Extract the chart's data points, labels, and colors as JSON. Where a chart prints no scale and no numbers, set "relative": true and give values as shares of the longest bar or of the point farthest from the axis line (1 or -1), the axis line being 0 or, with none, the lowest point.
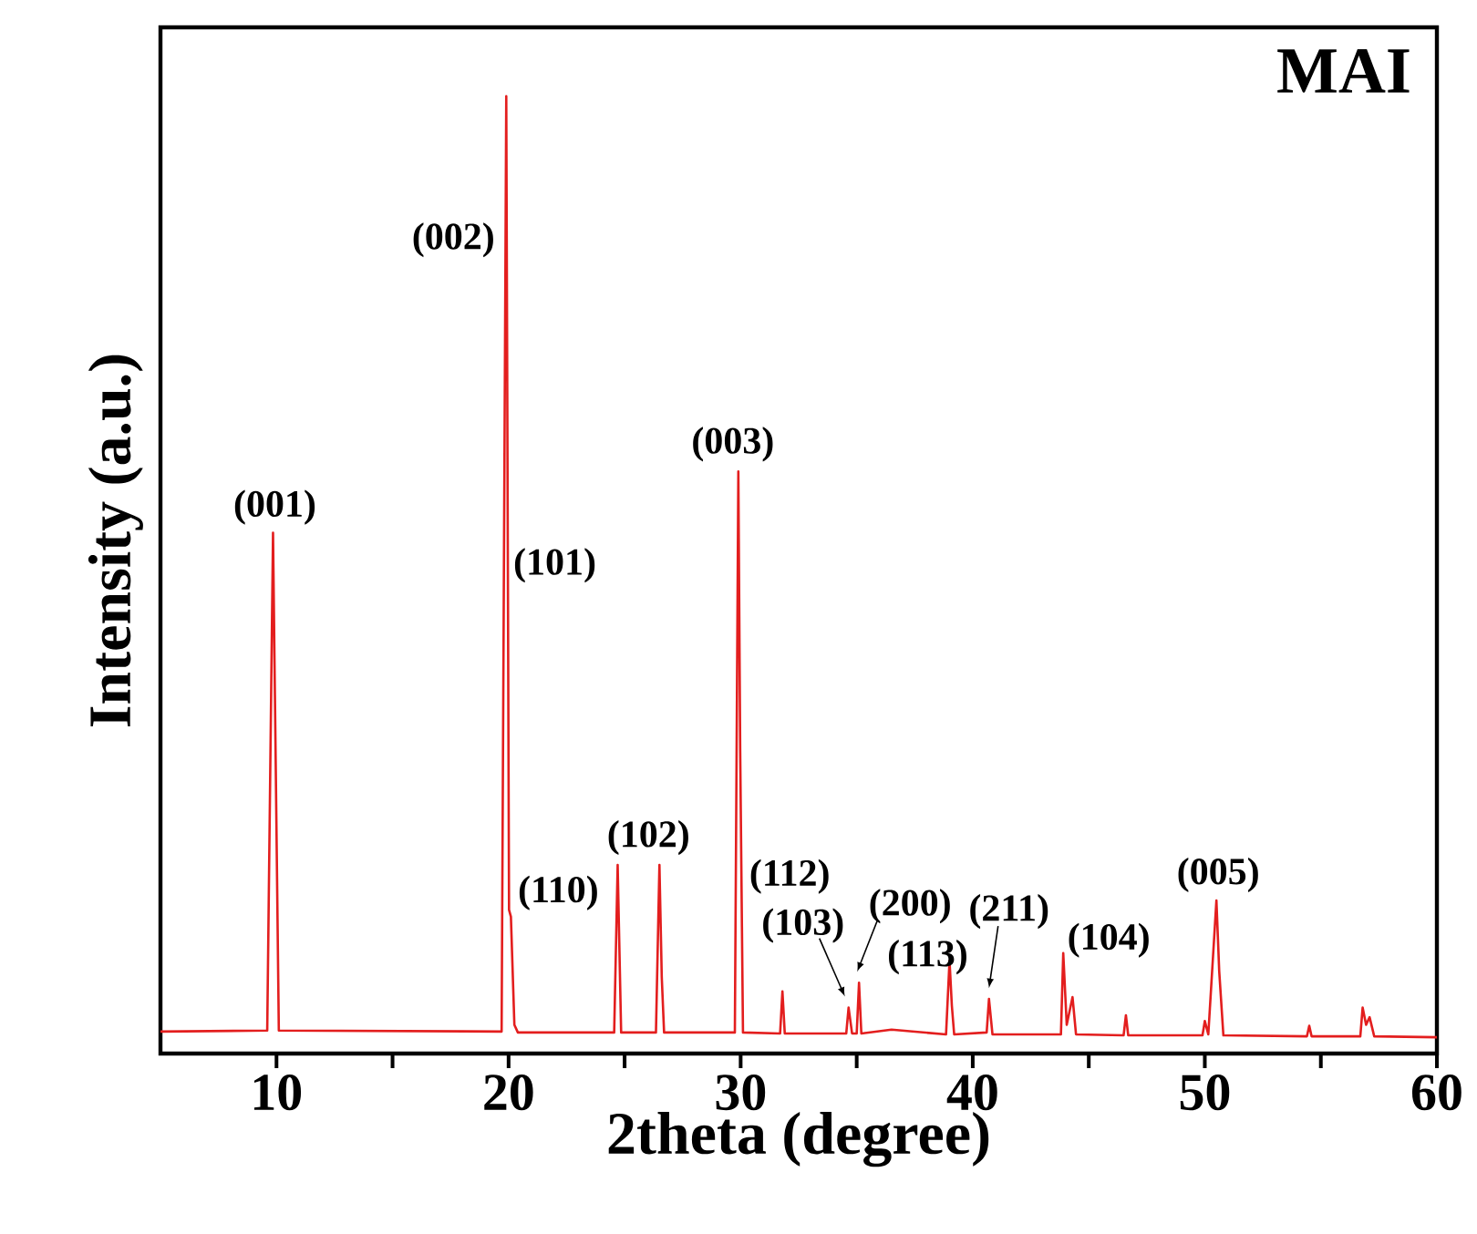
{
  "chart_data": {
    "type": "line",
    "title": "MAI",
    "xlabel": "2theta (degree)",
    "ylabel": "Intensity (a.u.)",
    "relative": true,
    "color": "#e31e1e",
    "xlim": [
      5,
      60
    ],
    "xticks": [
      10,
      {
        "value": 15,
        "label": null
      },
      20,
      {
        "value": 25,
        "label": null
      },
      30,
      {
        "value": 35,
        "label": null
      },
      40,
      {
        "value": 45,
        "label": null
      },
      50,
      {
        "value": 55,
        "label": null
      },
      60
    ],
    "x": [
      5,
      9.6,
      9.85,
      10.1,
      19.7,
      19.9,
      20.02,
      20.1,
      20.25,
      20.4,
      24.55,
      24.7,
      24.85,
      26.35,
      26.5,
      26.6,
      26.7,
      29.75,
      29.9,
      29.98,
      30.1,
      31.7,
      31.8,
      31.9,
      34.55,
      34.65,
      34.8,
      35.0,
      35.1,
      35.2,
      36.5,
      38.85,
      39.0,
      39.1,
      39.2,
      40.6,
      40.7,
      40.85,
      43.8,
      43.9,
      44.05,
      44.3,
      44.45,
      46.5,
      46.6,
      46.7,
      49.9,
      50.0,
      50.15,
      50.5,
      50.62,
      50.8,
      54.4,
      54.5,
      54.6,
      56.7,
      56.8,
      56.95,
      57.1,
      57.3,
      60
    ],
    "series": [
      {
        "values": [
          0.023,
          0.024,
          0.544,
          0.024,
          0.023,
          1.0,
          0.15,
          0.143,
          0.03,
          0.022,
          0.022,
          0.197,
          0.022,
          0.022,
          0.197,
          0.08,
          0.022,
          0.022,
          0.608,
          0.316,
          0.022,
          0.021,
          0.065,
          0.021,
          0.021,
          0.048,
          0.021,
          0.021,
          0.074,
          0.021,
          0.025,
          0.02,
          0.097,
          0.05,
          0.02,
          0.022,
          0.057,
          0.02,
          0.02,
          0.105,
          0.03,
          0.059,
          0.02,
          0.019,
          0.04,
          0.019,
          0.019,
          0.034,
          0.02,
          0.16,
          0.086,
          0.019,
          0.018,
          0.029,
          0.018,
          0.018,
          0.048,
          0.03,
          0.038,
          0.018,
          0.017
        ]
      }
    ],
    "annotations": [
      {
        "text": "(001)",
        "x": 9.85,
        "y": 0.544
      },
      {
        "text": "(002)",
        "x": 19.9,
        "y": 0.85
      },
      {
        "text": "(101)",
        "x": 19.95,
        "y": 0.51
      },
      {
        "text": "(110)",
        "x": 20.1,
        "y": 0.143
      },
      {
        "text": "(102)",
        "x": 26.5,
        "y": 0.197
      },
      {
        "text": "(003)",
        "x": 29.9,
        "y": 0.608
      },
      {
        "text": "(112)",
        "x": 31.8,
        "y": 0.065
      },
      {
        "text": "(103)",
        "x": 34.65,
        "y": 0.048
      },
      {
        "text": "(200)",
        "x": 35.1,
        "y": 0.074
      },
      {
        "text": "(113)",
        "x": 39.0,
        "y": 0.097
      },
      {
        "text": "(211)",
        "x": 40.7,
        "y": 0.057
      },
      {
        "text": "(104)",
        "x": 43.9,
        "y": 0.105
      },
      {
        "text": "(005)",
        "x": 50.5,
        "y": 0.16
      }
    ]
  }
}
